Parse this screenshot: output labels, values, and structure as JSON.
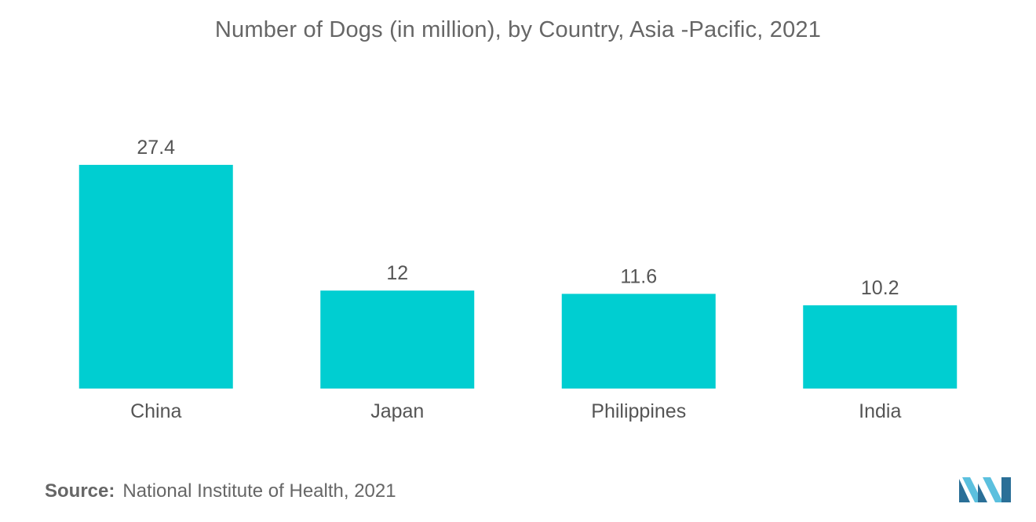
{
  "title": "Number of Dogs (in million), by Country, Asia -Pacific, 2021",
  "source": {
    "label": "Source:",
    "text": "National Institute of Health, 2021"
  },
  "colors": {
    "bar": "#00CED1",
    "label_text": "#555555",
    "logo_light": "#5BC0DE",
    "logo_dark": "#2A6F97"
  },
  "logo_icon": "mordor-intelligence-logo-icon",
  "chart_data": {
    "type": "bar",
    "categories": [
      "China",
      "Japan",
      "Philippines",
      "India"
    ],
    "values": [
      27.4,
      12,
      11.6,
      10.2
    ],
    "value_labels": [
      "27.4",
      "12",
      "11.6",
      "10.2"
    ],
    "title": "Number of Dogs (in million), by Country, Asia -Pacific, 2021",
    "xlabel": "",
    "ylabel": "",
    "ylim": [
      0,
      27.4
    ],
    "grid": false,
    "legend": "none"
  }
}
